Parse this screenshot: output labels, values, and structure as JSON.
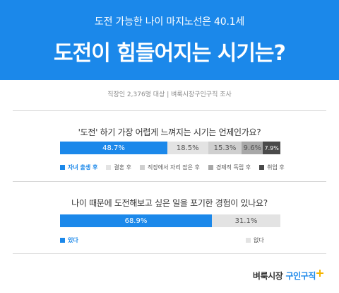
{
  "header": {
    "subtitle": "도전 가능한 나이 마지노선은  40.1세",
    "title": "도전이 힘들어지는 시기는?"
  },
  "survey_note": "직장인 2,376명 대상  |  벼룩시장구인구직 조사",
  "brand": {
    "part1": "벼룩시장",
    "part2": "구인구직"
  },
  "colors": {
    "primary": "#1b88ea",
    "gray1": "#e3e3e3",
    "gray2": "#cfcfcf",
    "gray3": "#a8a8a8",
    "gray4": "#4a4a4a",
    "accent": "#f5b400"
  },
  "chart_data": [
    {
      "type": "bar",
      "orientation": "horizontal-stacked",
      "title": "'도전' 하기 가장 어렵게 느껴지는 시기는 언제인가요?",
      "series": [
        {
          "name": "자녀 출생 후",
          "value": 48.7,
          "label": "48.7%",
          "color": "#1b88ea"
        },
        {
          "name": "결혼 후",
          "value": 18.5,
          "label": "18.5%",
          "color": "#e3e3e3"
        },
        {
          "name": "직장에서 자리 잡은 후",
          "value": 15.3,
          "label": "15.3%",
          "color": "#cfcfcf"
        },
        {
          "name": "경제적 독립 후",
          "value": 9.6,
          "label": "9.6%",
          "color": "#a8a8a8"
        },
        {
          "name": "취업 후",
          "value": 7.9,
          "label": "7.9%",
          "color": "#4a4a4a"
        }
      ],
      "legend_position": "bottom"
    },
    {
      "type": "bar",
      "orientation": "horizontal-stacked",
      "title": "나이 때문에 도전해보고 싶은 일을 포기한 경험이 있나요?",
      "series": [
        {
          "name": "있다",
          "value": 68.9,
          "label": "68.9%",
          "color": "#1b88ea"
        },
        {
          "name": "없다",
          "value": 31.1,
          "label": "31.1%",
          "color": "#e3e3e3"
        }
      ],
      "legend_position": "bottom"
    }
  ]
}
